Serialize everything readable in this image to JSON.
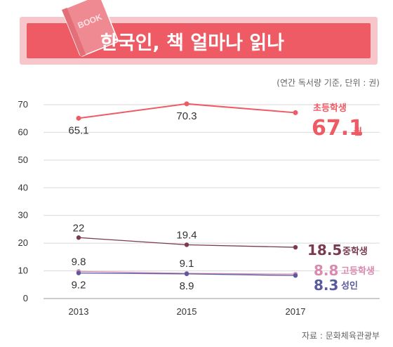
{
  "banner": {
    "title": "한국인, 책 얼마나 읽나",
    "book_tag": "BOOK",
    "colors": {
      "band": "#f7c6cb",
      "fill": "#ef5b64",
      "text": "#ffffff",
      "book": "#f08a92"
    }
  },
  "unit_note": "(연간 독서량 기준, 단위 : 권)",
  "source": "자료 : 문화체육관광부",
  "chart_data": {
    "type": "line",
    "title": "한국인, 책 얼마나 읽나",
    "xlabel": "",
    "ylabel": "",
    "x": [
      "2013",
      "2015",
      "2017"
    ],
    "ylim": [
      0,
      70
    ],
    "yticks": [
      "0",
      "10",
      "20",
      "30",
      "40",
      "50",
      "60",
      "70"
    ],
    "grid": true,
    "series": [
      {
        "name": "초등학생",
        "values": [
          65.1,
          70.3,
          67.1
        ],
        "color": "#ef5b64",
        "point_labels": [
          "65.1",
          "70.3",
          ""
        ],
        "label_pos": [
          "below",
          "below",
          ""
        ],
        "end_value": "67.1",
        "end_unit": "권"
      },
      {
        "name": "중학생",
        "values": [
          22,
          19.4,
          18.5
        ],
        "color": "#7a3b52",
        "point_labels": [
          "22",
          "19.4",
          ""
        ],
        "label_pos": [
          "above",
          "above",
          ""
        ],
        "end_value": "18.5",
        "end_unit": ""
      },
      {
        "name": "고등학생",
        "values": [
          9.8,
          9.1,
          8.8
        ],
        "color": "#d98ab0",
        "point_labels": [
          "9.8",
          "9.1",
          ""
        ],
        "label_pos": [
          "above",
          "above",
          ""
        ],
        "end_value": "8.8",
        "end_unit": ""
      },
      {
        "name": "성인",
        "values": [
          9.2,
          8.9,
          8.3
        ],
        "color": "#5a5a9e",
        "point_labels": [
          "9.2",
          "8.9",
          ""
        ],
        "label_pos": [
          "below",
          "below",
          ""
        ],
        "end_value": "8.3",
        "end_unit": ""
      }
    ]
  }
}
